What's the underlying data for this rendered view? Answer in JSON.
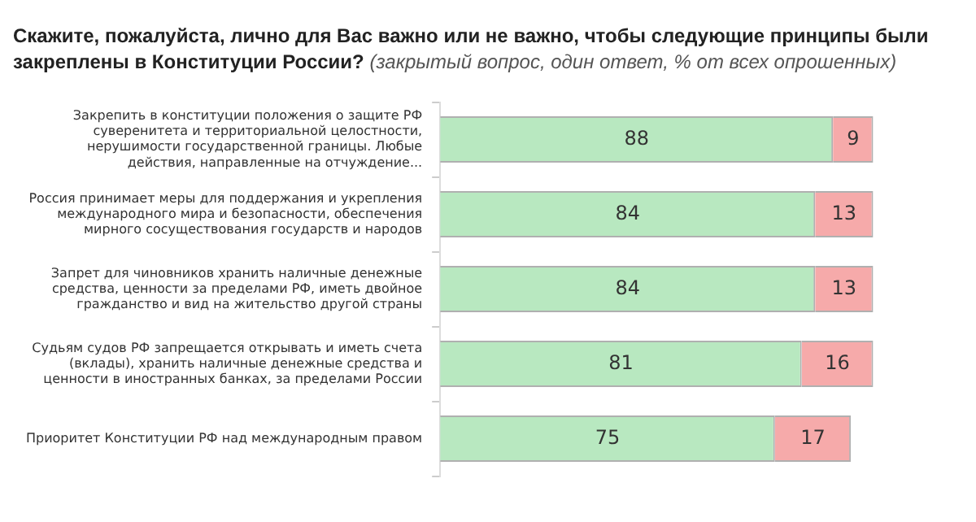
{
  "chart_data": {
    "type": "bar",
    "orientation": "horizontal",
    "stacked": true,
    "title": "Скажите, пожалуйста, лично для Вас важно или не важно, чтобы следующие принципы были закреплены в Конституции России?",
    "subtitle": "(закрытый вопрос, один ответ, % от всех опрошенных)",
    "categories": [
      "Закрепить в конституции положения о защите РФ суверенитета и территориальной целостности, нерушимости государственной границы. Любые действия, направленные на отчуждение...",
      "Россия принимает меры для поддержания и укрепления международного мира и безопасности, обеспечения мирного сосуществования государств и народов",
      "Запрет для чиновников хранить наличные денежные средства, ценности за пределами РФ, иметь двойное гражданство и вид на жительство другой страны",
      "Судьям судов РФ запрещается открывать и иметь счета (вклады), хранить наличные денежные средства и ценности в иностранных банках, за пределами России",
      "Приоритет Конституции РФ над международным правом"
    ],
    "series": [
      {
        "color": "#b8e8c0",
        "values": [
          88,
          84,
          84,
          81,
          75
        ]
      },
      {
        "color": "#f6aaaa",
        "values": [
          9,
          13,
          13,
          16,
          17
        ]
      }
    ],
    "tick_labels": "y",
    "data_labels": true,
    "legend": false,
    "grid": false
  }
}
